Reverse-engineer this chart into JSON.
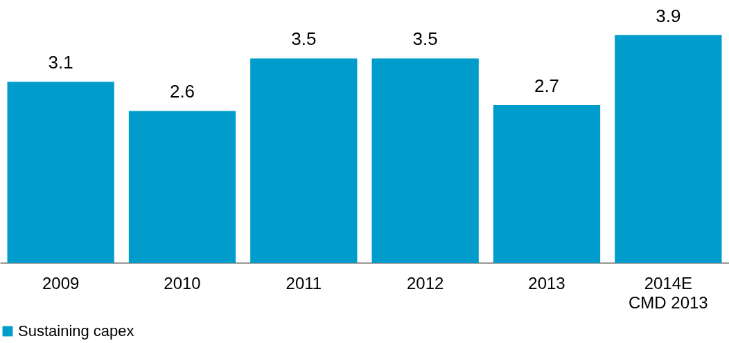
{
  "chart_data": {
    "type": "bar",
    "categories": [
      "2009",
      "2010",
      "2011",
      "2012",
      "2013",
      "2014E\nCMD 2013"
    ],
    "series": [
      {
        "name": "Sustaining capex",
        "color": "#009ccc",
        "values": [
          3.1,
          2.6,
          3.5,
          3.5,
          2.7,
          3.9
        ]
      }
    ],
    "ylim": [
      0,
      4.5
    ],
    "data_labels": true,
    "legend": "bottom",
    "grid": false,
    "tick_labels": "x"
  }
}
